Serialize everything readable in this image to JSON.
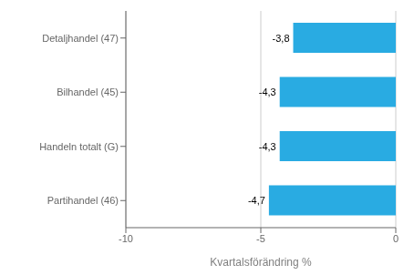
{
  "chart_data": {
    "type": "bar",
    "orientation": "horizontal",
    "categories": [
      "Partihandel (46)",
      "Handeln totalt (G)",
      "Bilhandel (45)",
      "Detaljhandel (47)"
    ],
    "values": [
      -4.7,
      -4.3,
      -4.3,
      -3.8
    ],
    "value_labels": [
      "-4,7",
      "-4,3",
      "-4,3",
      "-3,8"
    ],
    "color": "#29abe2",
    "xlabel": "Kvartalsförändring %",
    "xlim": [
      -10,
      0
    ],
    "xticks": [
      -10,
      -5,
      0
    ],
    "grid": true
  }
}
